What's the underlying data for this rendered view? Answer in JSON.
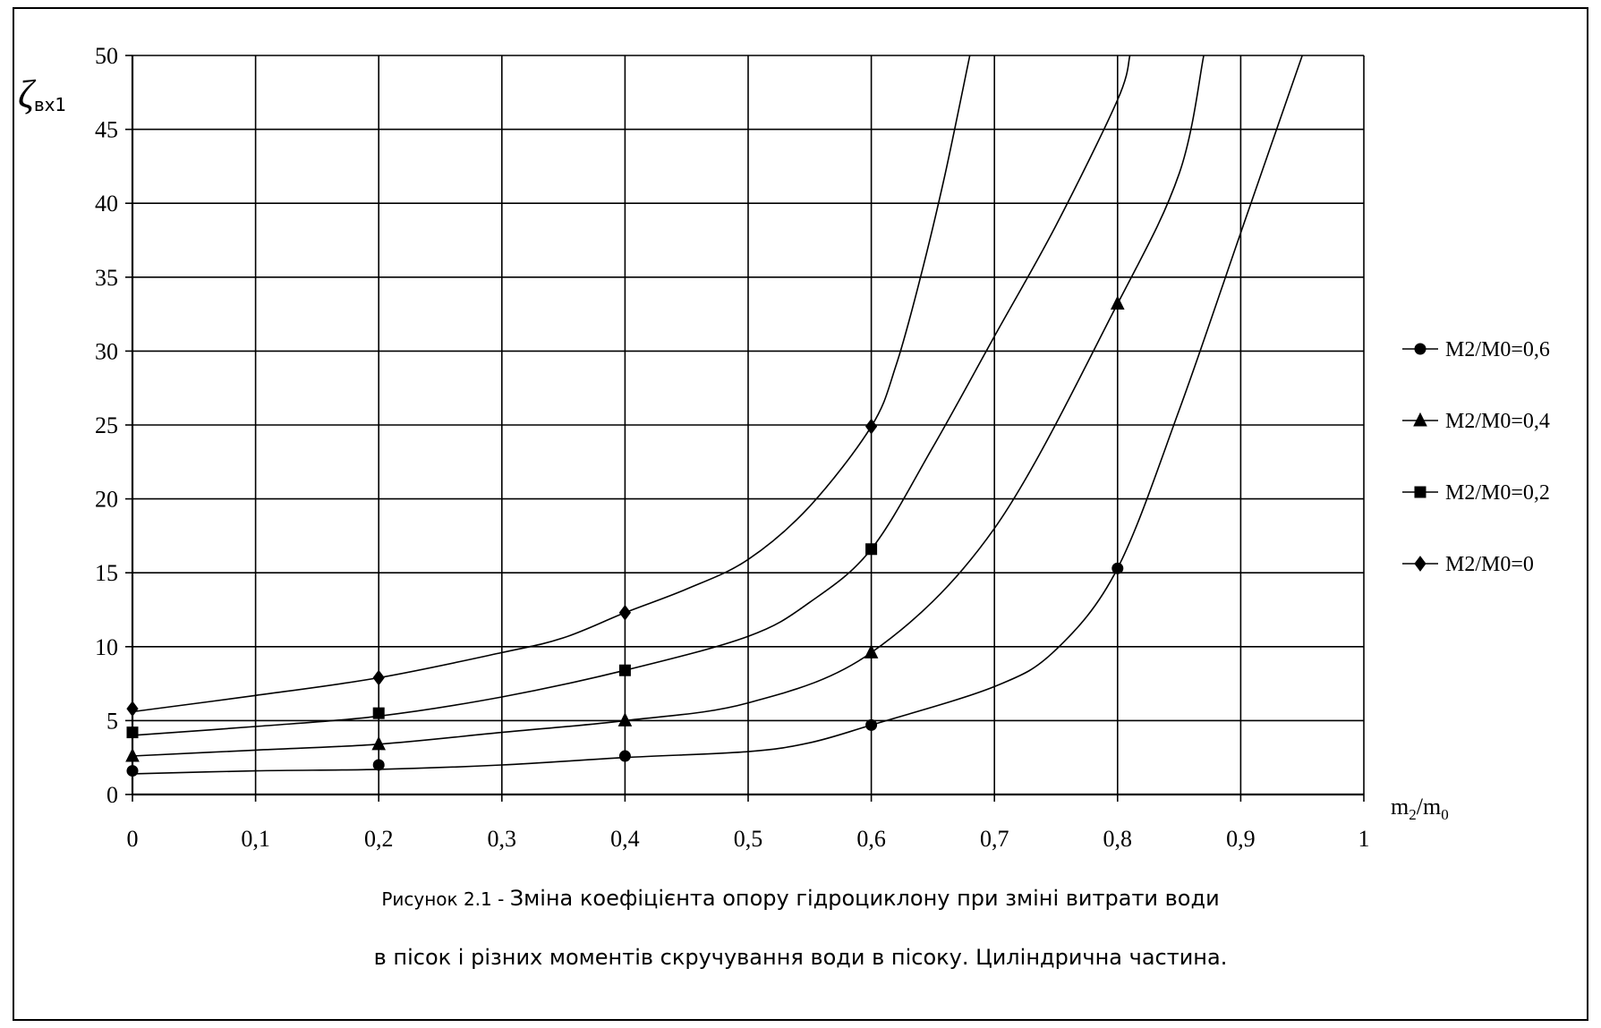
{
  "chart_data": {
    "type": "line",
    "title": "",
    "xlabel": "m2/m0",
    "xlabel_parts": {
      "base1": "m",
      "sub1": "2",
      "slash": "/",
      "base2": "m",
      "sub2": "0"
    },
    "ylabel": "ζвх1",
    "ylabel_parts": {
      "symbol": "ζ",
      "sub": "вх1"
    },
    "xlim": [
      0,
      1
    ],
    "ylim": [
      0,
      50
    ],
    "x_ticks": [
      0,
      0.1,
      0.2,
      0.3,
      0.4,
      0.5,
      0.6,
      0.7,
      0.8,
      0.9,
      1
    ],
    "x_tick_labels": [
      "0",
      "0,1",
      "0,2",
      "0,3",
      "0,4",
      "0,5",
      "0,6",
      "0,7",
      "0,8",
      "0,9",
      "1"
    ],
    "y_ticks": [
      0,
      5,
      10,
      15,
      20,
      25,
      30,
      35,
      40,
      45,
      50
    ],
    "y_tick_labels": [
      "0",
      "5",
      "10",
      "15",
      "20",
      "25",
      "30",
      "35",
      "40",
      "45",
      "50"
    ],
    "grid": true,
    "legend_position": "right",
    "series": [
      {
        "name": "M2/M0=0,6",
        "marker": "circle",
        "points": [
          [
            0,
            1.6
          ],
          [
            0.2,
            2.0
          ],
          [
            0.4,
            2.6
          ],
          [
            0.6,
            4.7
          ],
          [
            0.8,
            15.3
          ]
        ],
        "curve": [
          [
            0,
            1.4
          ],
          [
            0.1,
            1.6
          ],
          [
            0.2,
            1.7
          ],
          [
            0.3,
            2.0
          ],
          [
            0.4,
            2.5
          ],
          [
            0.5,
            2.9
          ],
          [
            0.55,
            3.5
          ],
          [
            0.6,
            4.7
          ],
          [
            0.7,
            7.3
          ],
          [
            0.75,
            9.8
          ],
          [
            0.8,
            15.3
          ],
          [
            0.85,
            26.0
          ],
          [
            0.9,
            38.0
          ],
          [
            0.95,
            50.0
          ]
        ]
      },
      {
        "name": "M2/M0=0,4",
        "marker": "triangle",
        "points": [
          [
            0,
            2.6
          ],
          [
            0.2,
            3.4
          ],
          [
            0.4,
            5.0
          ],
          [
            0.6,
            9.6
          ],
          [
            0.8,
            33.2
          ]
        ],
        "curve": [
          [
            0,
            2.6
          ],
          [
            0.1,
            3.0
          ],
          [
            0.2,
            3.4
          ],
          [
            0.3,
            4.2
          ],
          [
            0.4,
            5.0
          ],
          [
            0.5,
            6.2
          ],
          [
            0.6,
            9.6
          ],
          [
            0.7,
            18.0
          ],
          [
            0.8,
            33.2
          ],
          [
            0.85,
            42.0
          ],
          [
            0.87,
            50.0
          ]
        ]
      },
      {
        "name": "M2/M0=0,2",
        "marker": "square",
        "points": [
          [
            0,
            4.2
          ],
          [
            0.2,
            5.5
          ],
          [
            0.4,
            8.4
          ],
          [
            0.6,
            16.6
          ]
        ],
        "curve": [
          [
            0,
            4.0
          ],
          [
            0.1,
            4.6
          ],
          [
            0.2,
            5.3
          ],
          [
            0.3,
            6.6
          ],
          [
            0.4,
            8.4
          ],
          [
            0.5,
            10.7
          ],
          [
            0.55,
            13.0
          ],
          [
            0.6,
            16.6
          ],
          [
            0.65,
            23.5
          ],
          [
            0.7,
            31.0
          ],
          [
            0.75,
            38.5
          ],
          [
            0.8,
            47.0
          ],
          [
            0.81,
            50.0
          ]
        ]
      },
      {
        "name": "M2/M0=0",
        "marker": "diamond",
        "points": [
          [
            0,
            5.8
          ],
          [
            0.2,
            7.9
          ],
          [
            0.4,
            12.3
          ],
          [
            0.6,
            24.9
          ]
        ],
        "curve": [
          [
            0,
            5.6
          ],
          [
            0.1,
            6.7
          ],
          [
            0.2,
            7.9
          ],
          [
            0.3,
            9.6
          ],
          [
            0.35,
            10.6
          ],
          [
            0.4,
            12.3
          ],
          [
            0.45,
            13.9
          ],
          [
            0.5,
            15.9
          ],
          [
            0.55,
            19.5
          ],
          [
            0.6,
            24.9
          ],
          [
            0.62,
            29.0
          ],
          [
            0.64,
            35.0
          ],
          [
            0.66,
            42.0
          ],
          [
            0.68,
            50.0
          ]
        ]
      }
    ]
  },
  "caption": {
    "lead": "Рисунок 2.1  - ",
    "line1_rest": " Зміна коефіцієнта опору гідроциклону при зміні витрати  води",
    "line2": "в пісок і різних моментів скручування води в пісоку. Циліндрична частина."
  }
}
